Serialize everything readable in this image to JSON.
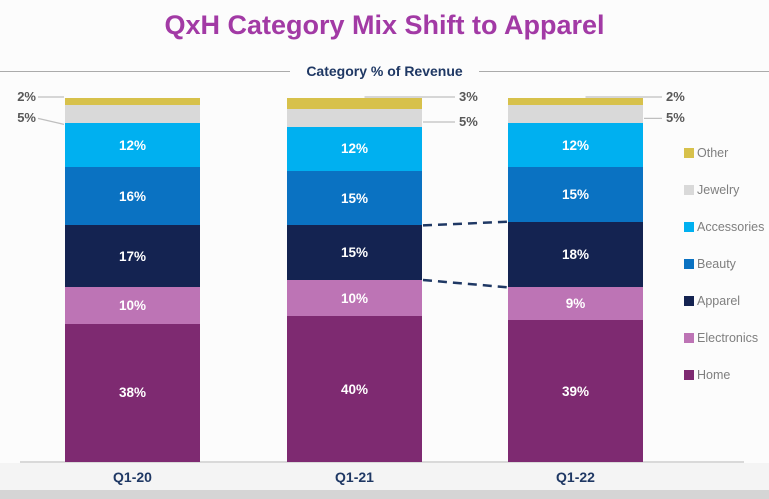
{
  "header": {
    "title": "QxH Category Mix Shift to Apparel",
    "subtitle": "Category % of Revenue"
  },
  "chart_data": {
    "type": "bar",
    "stacked": true,
    "unit": "%",
    "title": "QxH Category Mix Shift to Apparel",
    "subtitle": "Category % of Revenue",
    "categories": [
      "Q1-20",
      "Q1-21",
      "Q1-22"
    ],
    "series": [
      {
        "name": "Other",
        "color": "#D7C14B",
        "values": [
          2,
          3,
          2
        ]
      },
      {
        "name": "Jewelry",
        "color": "#D9D9D9",
        "values": [
          5,
          5,
          5
        ]
      },
      {
        "name": "Accessories",
        "color": "#00B0F0",
        "values": [
          12,
          12,
          12
        ]
      },
      {
        "name": "Beauty",
        "color": "#0A72C2",
        "values": [
          16,
          15,
          15
        ]
      },
      {
        "name": "Apparel",
        "color": "#142351",
        "values": [
          17,
          15,
          18
        ]
      },
      {
        "name": "Electronics",
        "color": "#BD74B5",
        "values": [
          10,
          10,
          9
        ]
      },
      {
        "name": "Home",
        "color": "#7E2A71",
        "values": [
          38,
          40,
          39
        ]
      }
    ],
    "ylim": [
      0,
      100
    ],
    "grid": false,
    "legend_position": "right",
    "legend_order": [
      "Other",
      "Jewelry",
      "Accessories",
      "Beauty",
      "Apparel",
      "Electronics",
      "Home"
    ],
    "value_label_rule": "values >= 9% labeled inside in white; smaller segments labeled outside with gray leader lines",
    "annotation": {
      "type": "dashed-connector",
      "series": "Apparel",
      "between": [
        "Q1-21",
        "Q1-22"
      ]
    }
  },
  "colors": {
    "title_text": "#A23AA5",
    "subtitle_text": "#1F3864",
    "category_label_text": "#1F3864",
    "callout_text": "#595959",
    "legend_text": "#7F7F7F",
    "connector_line": "#1F3864",
    "leader_line": "#BFBFBF",
    "baseline": "#D9D9D9"
  }
}
